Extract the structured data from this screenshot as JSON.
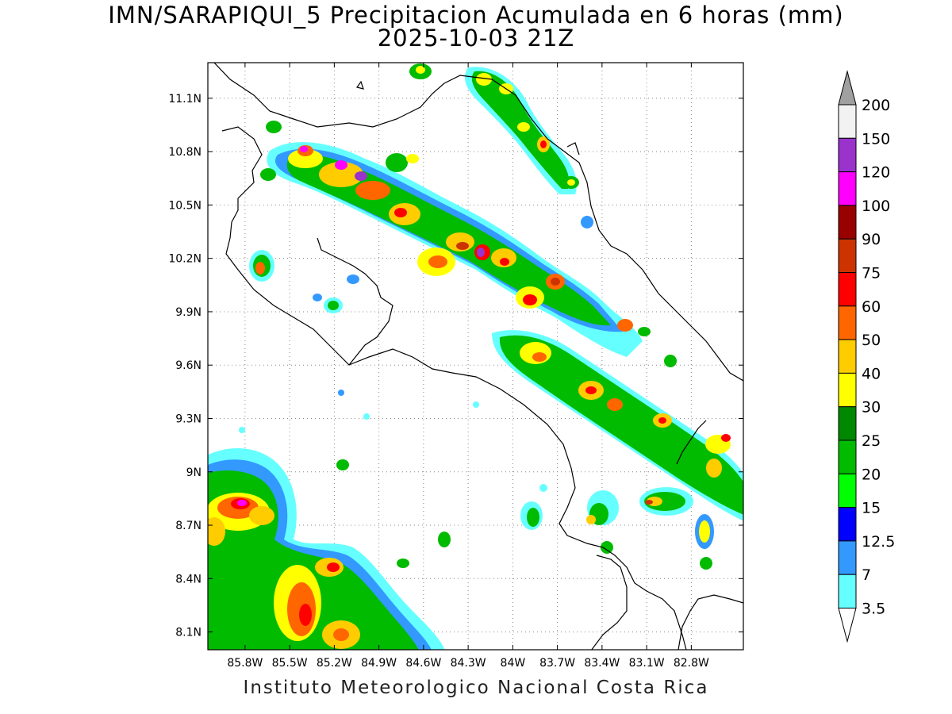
{
  "title": {
    "line1": "IMN/SARAPIQUI_5 Precipitacion Acumulada en 6 horas (mm)",
    "line2": "2025-10-03 21Z"
  },
  "footer": "Instituto Meteorologico Nacional Costa Rica",
  "map": {
    "lon_range": [
      -86.05,
      -82.45
    ],
    "lat_range": [
      8.0,
      11.3
    ],
    "lat_ticks": [
      "11.1N",
      "10.8N",
      "10.5N",
      "10.2N",
      "9.9N",
      "9.6N",
      "9.3N",
      "9N",
      "8.7N",
      "8.4N",
      "8.1N"
    ],
    "lon_ticks": [
      "85.8W",
      "85.5W",
      "85.2W",
      "84.9W",
      "84.6W",
      "84.3W",
      "84W",
      "83.7W",
      "83.4W",
      "83.1W",
      "82.8W"
    ],
    "grid": true,
    "grid_style": "dotted"
  },
  "colorbar": {
    "levels": [
      "200",
      "150",
      "120",
      "100",
      "90",
      "75",
      "60",
      "50",
      "40",
      "30",
      "25",
      "20",
      "15",
      "12.5",
      "7",
      "3.5"
    ],
    "colors": [
      "#a0a0a0",
      "#f2f2f2",
      "#9933cc",
      "#ff00ff",
      "#990000",
      "#cc3300",
      "#ff0000",
      "#ff6600",
      "#ffcc00",
      "#ffff00",
      "#008800",
      "#00bb00",
      "#00ff00",
      "#0000ff",
      "#3399ff",
      "#66ffff",
      "#ffffff"
    ]
  }
}
